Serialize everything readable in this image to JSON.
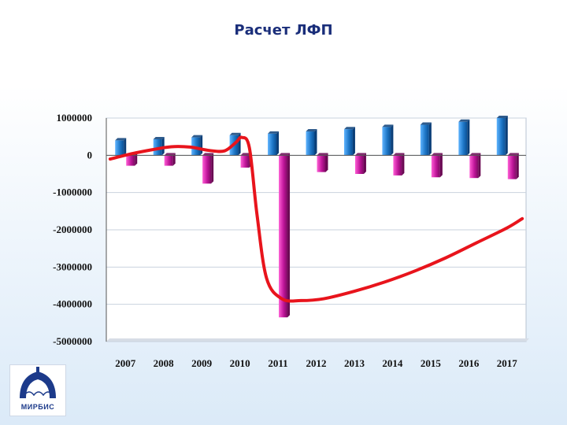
{
  "slide": {
    "title": "Расчет ЛФП"
  },
  "logo": {
    "text": "МИРБИС"
  },
  "chart_data": {
    "type": "bar",
    "title": "",
    "xlabel": "",
    "ylabel": "",
    "ylim": [
      -5000000,
      1000000
    ],
    "y_ticks": [
      1000000,
      0,
      -1000000,
      -2000000,
      -3000000,
      -4000000,
      -5000000
    ],
    "y_tick_labels": [
      "1000000",
      "0",
      "-1000000",
      "-2000000",
      "-3000000",
      "-4000000",
      "-5000000"
    ],
    "grid": true,
    "legend": "none",
    "categories": [
      "2007",
      "2008",
      "2009",
      "2010",
      "2011",
      "2012",
      "2013",
      "2014",
      "2015",
      "2016",
      "2017"
    ],
    "series": [
      {
        "color": "#1f78c8",
        "values": [
          400000,
          430000,
          480000,
          540000,
          580000,
          640000,
          700000,
          760000,
          820000,
          900000,
          1000000
        ]
      },
      {
        "color": "#c0169a",
        "values": [
          -280000,
          -280000,
          -760000,
          -330000,
          -4350000,
          -450000,
          -500000,
          -540000,
          -590000,
          -610000,
          -640000
        ]
      }
    ],
    "trend_line": {
      "color": "#e8141c",
      "x": [
        2006.6,
        2007.2,
        2007.7,
        2008.2,
        2008.7,
        2009.2,
        2009.6,
        2009.9,
        2010.05,
        2010.25,
        2010.45,
        2010.7,
        2011.1,
        2011.6,
        2012.2,
        2013.0,
        2013.8,
        2014.6,
        2015.4,
        2016.2,
        2017.0,
        2017.4
      ],
      "y": [
        -100000,
        50000,
        150000,
        230000,
        220000,
        130000,
        120000,
        350000,
        480000,
        200000,
        -1600000,
        -3300000,
        -3850000,
        -3900000,
        -3850000,
        -3650000,
        -3400000,
        -3100000,
        -2750000,
        -2350000,
        -1950000,
        -1700000
      ]
    }
  }
}
